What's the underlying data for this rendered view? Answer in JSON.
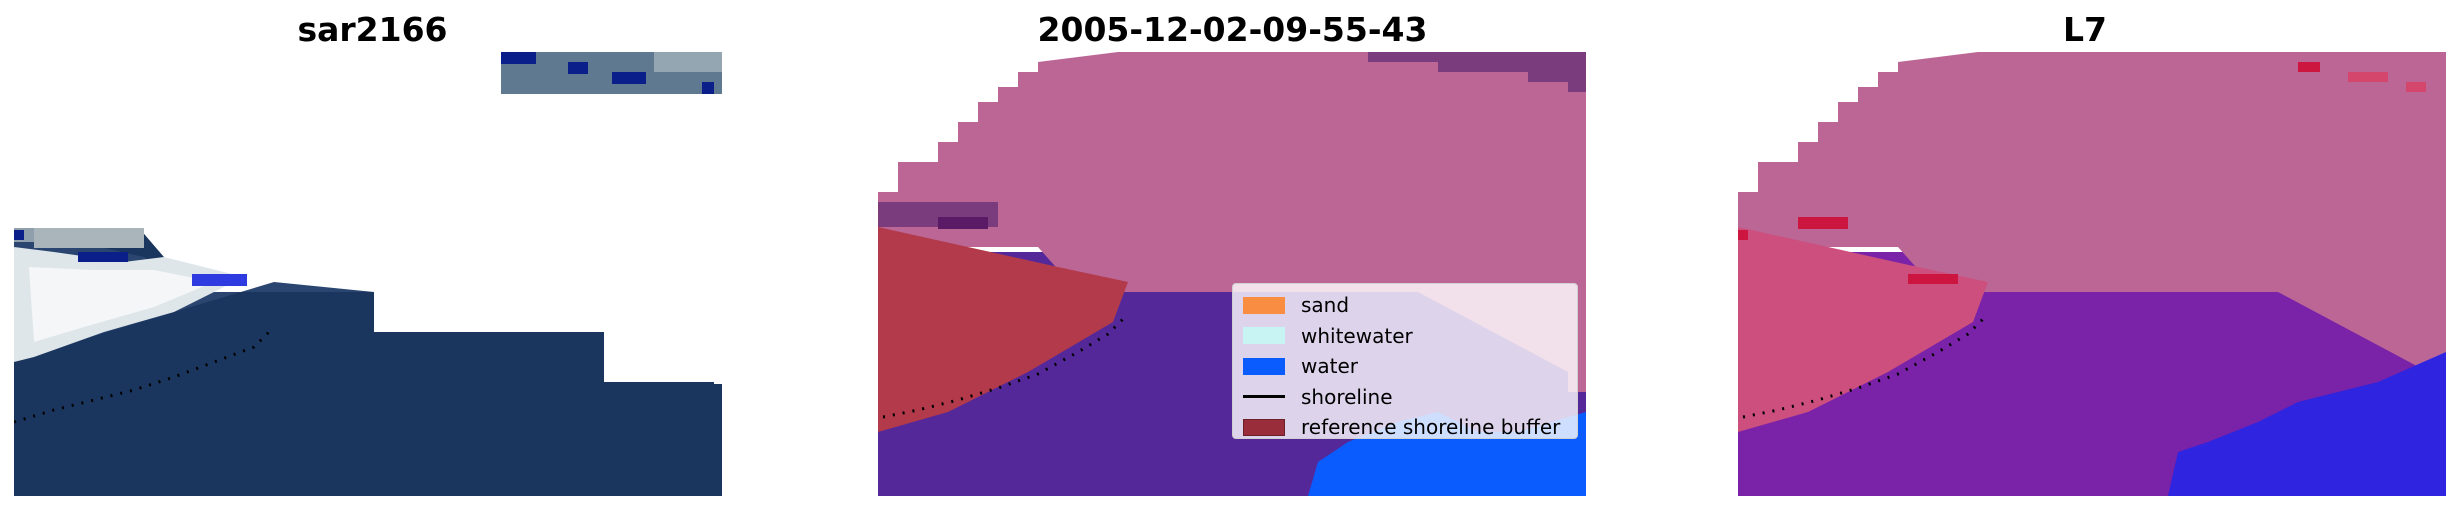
{
  "panels": [
    {
      "title": "sar2166"
    },
    {
      "title": "2005-12-02-09-55-43"
    },
    {
      "title": "L7"
    }
  ],
  "legend": {
    "items": [
      {
        "label": "sand",
        "color": "#f98e42",
        "kind": "patch"
      },
      {
        "label": "whitewater",
        "color": "#c8f4f4",
        "kind": "patch"
      },
      {
        "label": "water",
        "color": "#0a5cff",
        "kind": "patch"
      },
      {
        "label": "shoreline",
        "color": "#000000",
        "kind": "line"
      },
      {
        "label": "reference shoreline buffer",
        "color": "#9a2d3a",
        "kind": "patch"
      }
    ]
  },
  "colors": {
    "sea_dark": "#1b365e",
    "surf_white": "#e6ecee",
    "cloud_gray": "#a9b5bb",
    "sky_pink": "#bc6696",
    "sand_red": "#b23a4a",
    "water_purple": "#55289a",
    "water_blue": "#0a5cff",
    "l7_violet": "#7a22a8",
    "l7_pink": "#cc4f7e"
  }
}
